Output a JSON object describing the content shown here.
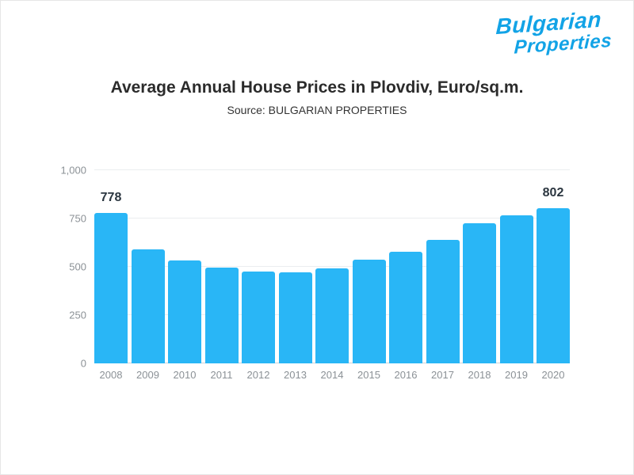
{
  "logo": {
    "line1": "Bulgarian",
    "line2": "Properties",
    "color": "#12a3e6"
  },
  "header": {
    "title": "Average Annual House Prices in Plovdiv, Euro/sq.m.",
    "subtitle": "Source: BULGARIAN PROPERTIES"
  },
  "chart_data": {
    "type": "bar",
    "title": "Average Annual House Prices in Plovdiv, Euro/sq.m.",
    "subtitle": "Source: BULGARIAN PROPERTIES",
    "categories": [
      "2008",
      "2009",
      "2010",
      "2011",
      "2012",
      "2013",
      "2014",
      "2015",
      "2016",
      "2017",
      "2018",
      "2019",
      "2020"
    ],
    "values": [
      778,
      590,
      533,
      496,
      475,
      471,
      492,
      537,
      578,
      640,
      725,
      768,
      802
    ],
    "ylim": [
      0,
      1000
    ],
    "yticks": [
      0,
      250,
      500,
      750,
      1000
    ],
    "ytick_labels": [
      "0",
      "250",
      "500",
      "750",
      "1,000"
    ],
    "bar_color": "#29b6f6",
    "grid": true,
    "legend": "none",
    "xlabel": "",
    "ylabel": "",
    "annotations": [
      {
        "index": 0,
        "category": "2008",
        "text": "778"
      },
      {
        "index": 12,
        "category": "2020",
        "text": "802"
      }
    ]
  }
}
